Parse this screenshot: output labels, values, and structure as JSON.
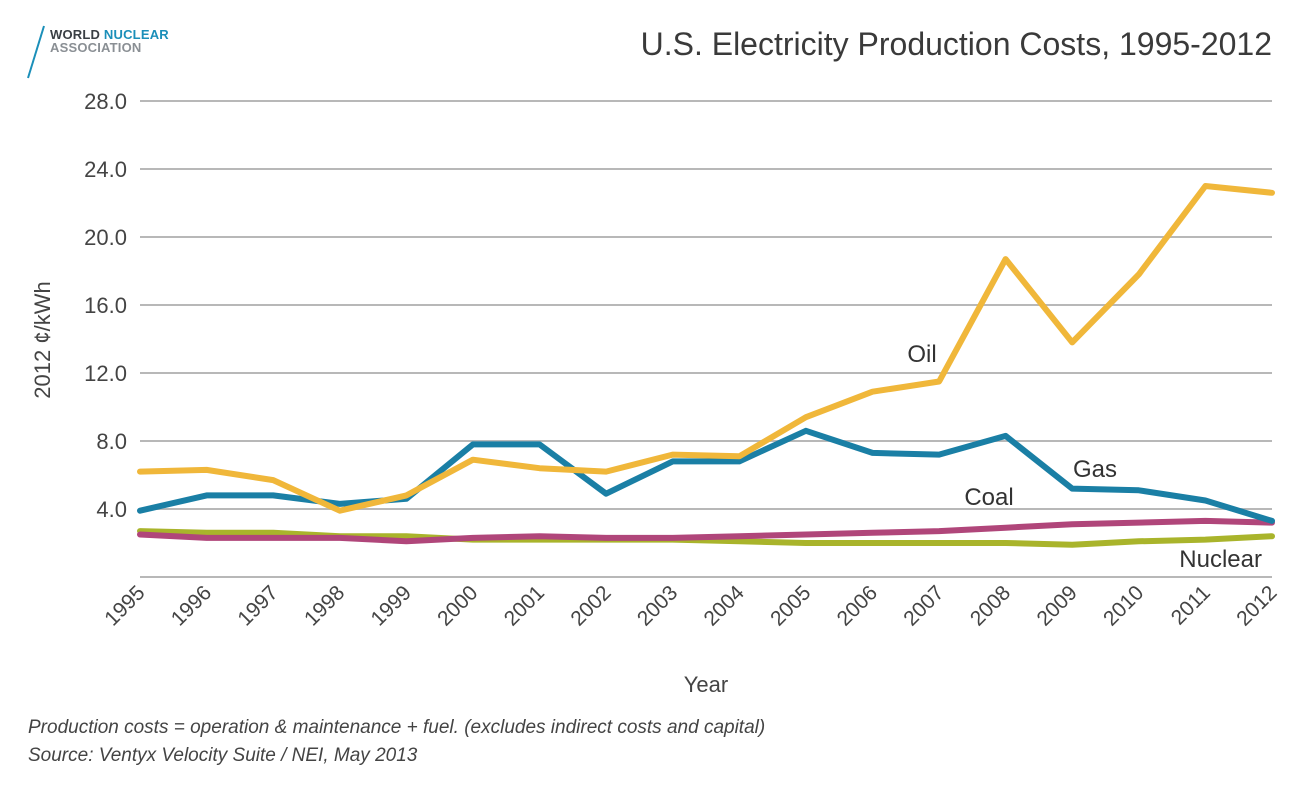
{
  "logo": {
    "word1": "WORLD",
    "word2": "NUCLEAR",
    "line2": "ASSOCIATION"
  },
  "title": "U.S. Electricity Production Costs, 1995-2012",
  "footnotes": [
    "Production costs = operation & maintenance + fuel. (excludes indirect costs and capital)",
    "Source: Ventyx Velocity Suite / NEI, May 2013"
  ],
  "colors": {
    "oil": "#f0b73a",
    "gas": "#1a7fa5",
    "coal": "#b0467a",
    "nuclear": "#a9b42b",
    "grid": "#b8b8b8",
    "logo_accent": "#1b8fb9"
  },
  "chart_data": {
    "type": "line",
    "title": "U.S. Electricity Production Costs, 1995-2012",
    "xlabel": "Year",
    "ylabel": "2012 ¢/kWh",
    "x": [
      "1995",
      "1996",
      "1997",
      "1998",
      "1999",
      "2000",
      "2001",
      "2002",
      "2003",
      "2004",
      "2005",
      "2006",
      "2007",
      "2008",
      "2009",
      "2010",
      "2011",
      "2012"
    ],
    "yticks": [
      "4.0",
      "8.0",
      "12.0",
      "16.0",
      "20.0",
      "24.0",
      "28.0"
    ],
    "ylim": [
      0,
      28
    ],
    "grid": true,
    "series": [
      {
        "name": "Oil",
        "color": "#f0b73a",
        "values": [
          6.2,
          6.3,
          5.7,
          3.9,
          4.8,
          6.9,
          6.4,
          6.2,
          7.2,
          7.1,
          9.4,
          10.9,
          11.5,
          18.7,
          13.8,
          17.8,
          23.0,
          22.6
        ]
      },
      {
        "name": "Gas",
        "color": "#1a7fa5",
        "values": [
          3.9,
          4.8,
          4.8,
          4.3,
          4.6,
          7.8,
          7.8,
          4.9,
          6.8,
          6.8,
          8.6,
          7.3,
          7.2,
          8.3,
          5.2,
          5.1,
          4.5,
          3.3
        ]
      },
      {
        "name": "Coal",
        "color": "#b0467a",
        "values": [
          2.5,
          2.3,
          2.3,
          2.3,
          2.1,
          2.3,
          2.4,
          2.3,
          2.3,
          2.4,
          2.5,
          2.6,
          2.7,
          2.9,
          3.1,
          3.2,
          3.3,
          3.2
        ]
      },
      {
        "name": "Nuclear",
        "color": "#a9b42b",
        "values": [
          2.7,
          2.6,
          2.6,
          2.4,
          2.4,
          2.2,
          2.2,
          2.2,
          2.2,
          2.1,
          2.0,
          2.0,
          2.0,
          2.0,
          1.9,
          2.1,
          2.2,
          2.4
        ]
      }
    ]
  }
}
